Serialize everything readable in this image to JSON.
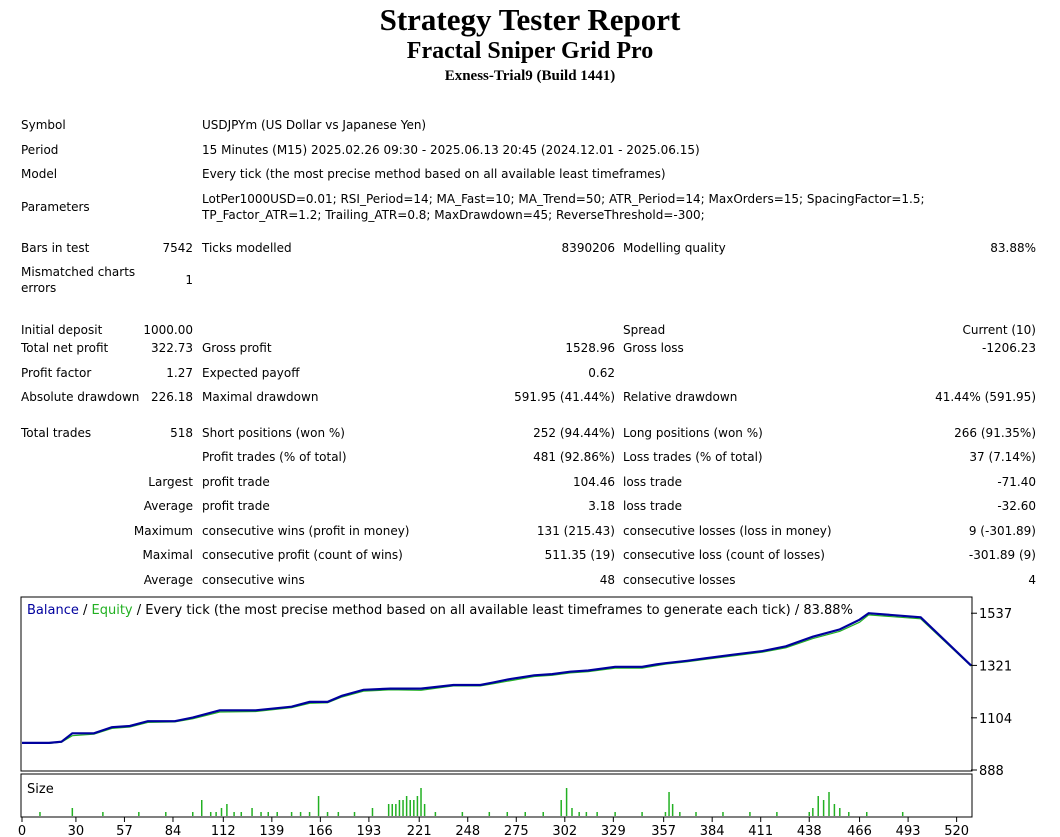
{
  "report": {
    "title": "Strategy Tester Report",
    "expert": "Fractal Sniper Grid Pro",
    "server": "Exness-Trial9 (Build 1441)"
  },
  "settings": {
    "symbol_label": "Symbol",
    "symbol": "USDJPYm (US Dollar vs Japanese Yen)",
    "period_label": "Period",
    "period": "15 Minutes (M15) 2025.02.26 09:30 - 2025.06.13 20:45 (2024.12.01 - 2025.06.15)",
    "model_label": "Model",
    "model": "Every tick (the most precise method based on all available least timeframes)",
    "parameters_label": "Parameters",
    "parameters_line1": "LotPer1000USD=0.01; RSI_Period=14; MA_Fast=10; MA_Trend=50; ATR_Period=14; MaxOrders=15; SpacingFactor=1.5;",
    "parameters_line2": "TP_Factor_ATR=1.2; Trailing_ATR=0.8; MaxDrawdown=45; ReverseThreshold=-300;"
  },
  "test": {
    "bars_label": "Bars in test",
    "bars": "7542",
    "ticks_label": "Ticks modelled",
    "ticks": "8390206",
    "quality_label": "Modelling quality",
    "quality": "83.88%",
    "mismatch_label_1": "Mismatched charts",
    "mismatch_label_2": "errors",
    "mismatch": "1"
  },
  "results": {
    "initial_deposit_label": "Initial deposit",
    "initial_deposit": "1000.00",
    "spread_label": "Spread",
    "spread": "Current (10)",
    "net_profit_label": "Total net profit",
    "net_profit": "322.73",
    "gross_profit_label": "Gross profit",
    "gross_profit": "1528.96",
    "gross_loss_label": "Gross loss",
    "gross_loss": "-1206.23",
    "profit_factor_label": "Profit factor",
    "profit_factor": "1.27",
    "expected_payoff_label": "Expected payoff",
    "expected_payoff": "0.62",
    "abs_dd_label": "Absolute drawdown",
    "abs_dd": "226.18",
    "max_dd_label": "Maximal drawdown",
    "max_dd": "591.95 (41.44%)",
    "rel_dd_label": "Relative drawdown",
    "rel_dd": "41.44% (591.95)",
    "total_trades_label": "Total trades",
    "total_trades": "518",
    "short_label": "Short positions (won %)",
    "short": "252 (94.44%)",
    "long_label": "Long positions (won %)",
    "long": "266 (91.35%)",
    "profit_trades_label": "Profit trades (% of total)",
    "profit_trades": "481 (92.86%)",
    "loss_trades_label": "Loss trades (% of total)",
    "loss_trades": "37 (7.14%)",
    "largest_label": "Largest",
    "largest_profit_label": "profit trade",
    "largest_profit": "104.46",
    "largest_loss_label": "loss trade",
    "largest_loss": "-71.40",
    "average_label": "Average",
    "average_profit_label": "profit trade",
    "average_profit": "3.18",
    "average_loss_label": "loss trade",
    "average_loss": "-32.60",
    "maximum_label": "Maximum",
    "max_cons_wins_label": "consecutive wins (profit in money)",
    "max_cons_wins": "131 (215.43)",
    "max_cons_losses_label": "consecutive losses (loss in money)",
    "max_cons_losses": "9 (-301.89)",
    "maximal_label": "Maximal",
    "maximal_cons_profit_label": "consecutive profit (count of wins)",
    "maximal_cons_profit": "511.35 (19)",
    "maximal_cons_loss_label": "consecutive loss (count of losses)",
    "maximal_cons_loss": "-301.89 (9)",
    "avg_label": "Average",
    "avg_cons_wins_label": "consecutive wins",
    "avg_cons_wins": "48",
    "avg_cons_losses_label": "consecutive losses",
    "avg_cons_losses": "4"
  },
  "chart_data": {
    "type": "line",
    "legend_balance": "Balance",
    "legend_sep1": " / ",
    "legend_equity": "Equity",
    "legend_rest": " / Every tick (the most precise method based on all available least timeframes to generate each tick) / 83.88%",
    "volume_label": "Size",
    "colors": {
      "balance": "#00009e",
      "equity": "#22b022",
      "volume": "#22b022"
    },
    "xlim": [
      0,
      528
    ],
    "ylim": [
      888,
      1600
    ],
    "yticks": [
      "1537",
      "1321",
      "1104",
      "888"
    ],
    "xticks": [
      "0",
      "30",
      "57",
      "84",
      "112",
      "139",
      "166",
      "193",
      "221",
      "248",
      "275",
      "302",
      "329",
      "357",
      "384",
      "411",
      "438",
      "466",
      "493",
      "520"
    ],
    "balance": {
      "x": [
        0,
        15,
        22,
        28,
        40,
        50,
        60,
        70,
        85,
        95,
        110,
        130,
        150,
        160,
        170,
        178,
        190,
        205,
        222,
        240,
        255,
        262,
        272,
        285,
        295,
        305,
        315,
        330,
        345,
        353,
        358,
        370,
        380,
        395,
        412,
        425,
        440,
        455,
        466,
        471,
        500,
        528
      ],
      "y": [
        1000,
        1000,
        1005,
        1040,
        1040,
        1065,
        1070,
        1090,
        1090,
        1105,
        1135,
        1135,
        1150,
        1170,
        1170,
        1195,
        1220,
        1225,
        1225,
        1240,
        1240,
        1250,
        1265,
        1280,
        1285,
        1295,
        1300,
        1315,
        1315,
        1325,
        1330,
        1340,
        1350,
        1365,
        1380,
        1400,
        1440,
        1470,
        1510,
        1537,
        1520,
        1321
      ]
    },
    "equity": {
      "x": [
        0,
        15,
        22,
        28,
        40,
        50,
        60,
        70,
        85,
        95,
        110,
        130,
        150,
        160,
        170,
        178,
        190,
        205,
        222,
        240,
        255,
        262,
        272,
        285,
        295,
        305,
        315,
        330,
        345,
        353,
        358,
        370,
        380,
        395,
        412,
        425,
        440,
        455,
        466,
        471,
        500,
        528
      ],
      "y": [
        998,
        998,
        1003,
        1030,
        1036,
        1060,
        1066,
        1085,
        1087,
        1100,
        1128,
        1130,
        1146,
        1164,
        1166,
        1190,
        1214,
        1220,
        1218,
        1236,
        1236,
        1245,
        1258,
        1275,
        1280,
        1290,
        1295,
        1310,
        1310,
        1320,
        1326,
        1336,
        1346,
        1360,
        1376,
        1394,
        1432,
        1462,
        1500,
        1530,
        1514,
        1318
      ]
    },
    "volume": {
      "x": [
        10,
        28,
        45,
        65,
        80,
        95,
        100,
        105,
        108,
        111,
        114,
        118,
        122,
        128,
        133,
        137,
        142,
        150,
        155,
        160,
        165,
        170,
        176,
        185,
        195,
        204,
        206,
        208,
        210,
        212,
        214,
        216,
        218,
        220,
        222,
        224,
        230,
        245,
        260,
        270,
        280,
        290,
        300,
        303,
        306,
        310,
        314,
        320,
        330,
        345,
        358,
        360,
        362,
        366,
        375,
        390,
        405,
        420,
        438,
        440,
        443,
        446,
        449,
        452,
        455,
        460,
        470,
        490
      ],
      "y": [
        1,
        2,
        1,
        1,
        1,
        1,
        4,
        1,
        1,
        2,
        3,
        1,
        1,
        2,
        1,
        1,
        1,
        1,
        1,
        1,
        5,
        1,
        1,
        1,
        2,
        3,
        3,
        3,
        4,
        4,
        5,
        4,
        4,
        5,
        7,
        3,
        1,
        1,
        1,
        1,
        1,
        1,
        4,
        7,
        2,
        1,
        1,
        1,
        1,
        1,
        1,
        6,
        3,
        1,
        1,
        1,
        1,
        1,
        1,
        2,
        5,
        4,
        6,
        3,
        2,
        1,
        1,
        1
      ]
    }
  }
}
